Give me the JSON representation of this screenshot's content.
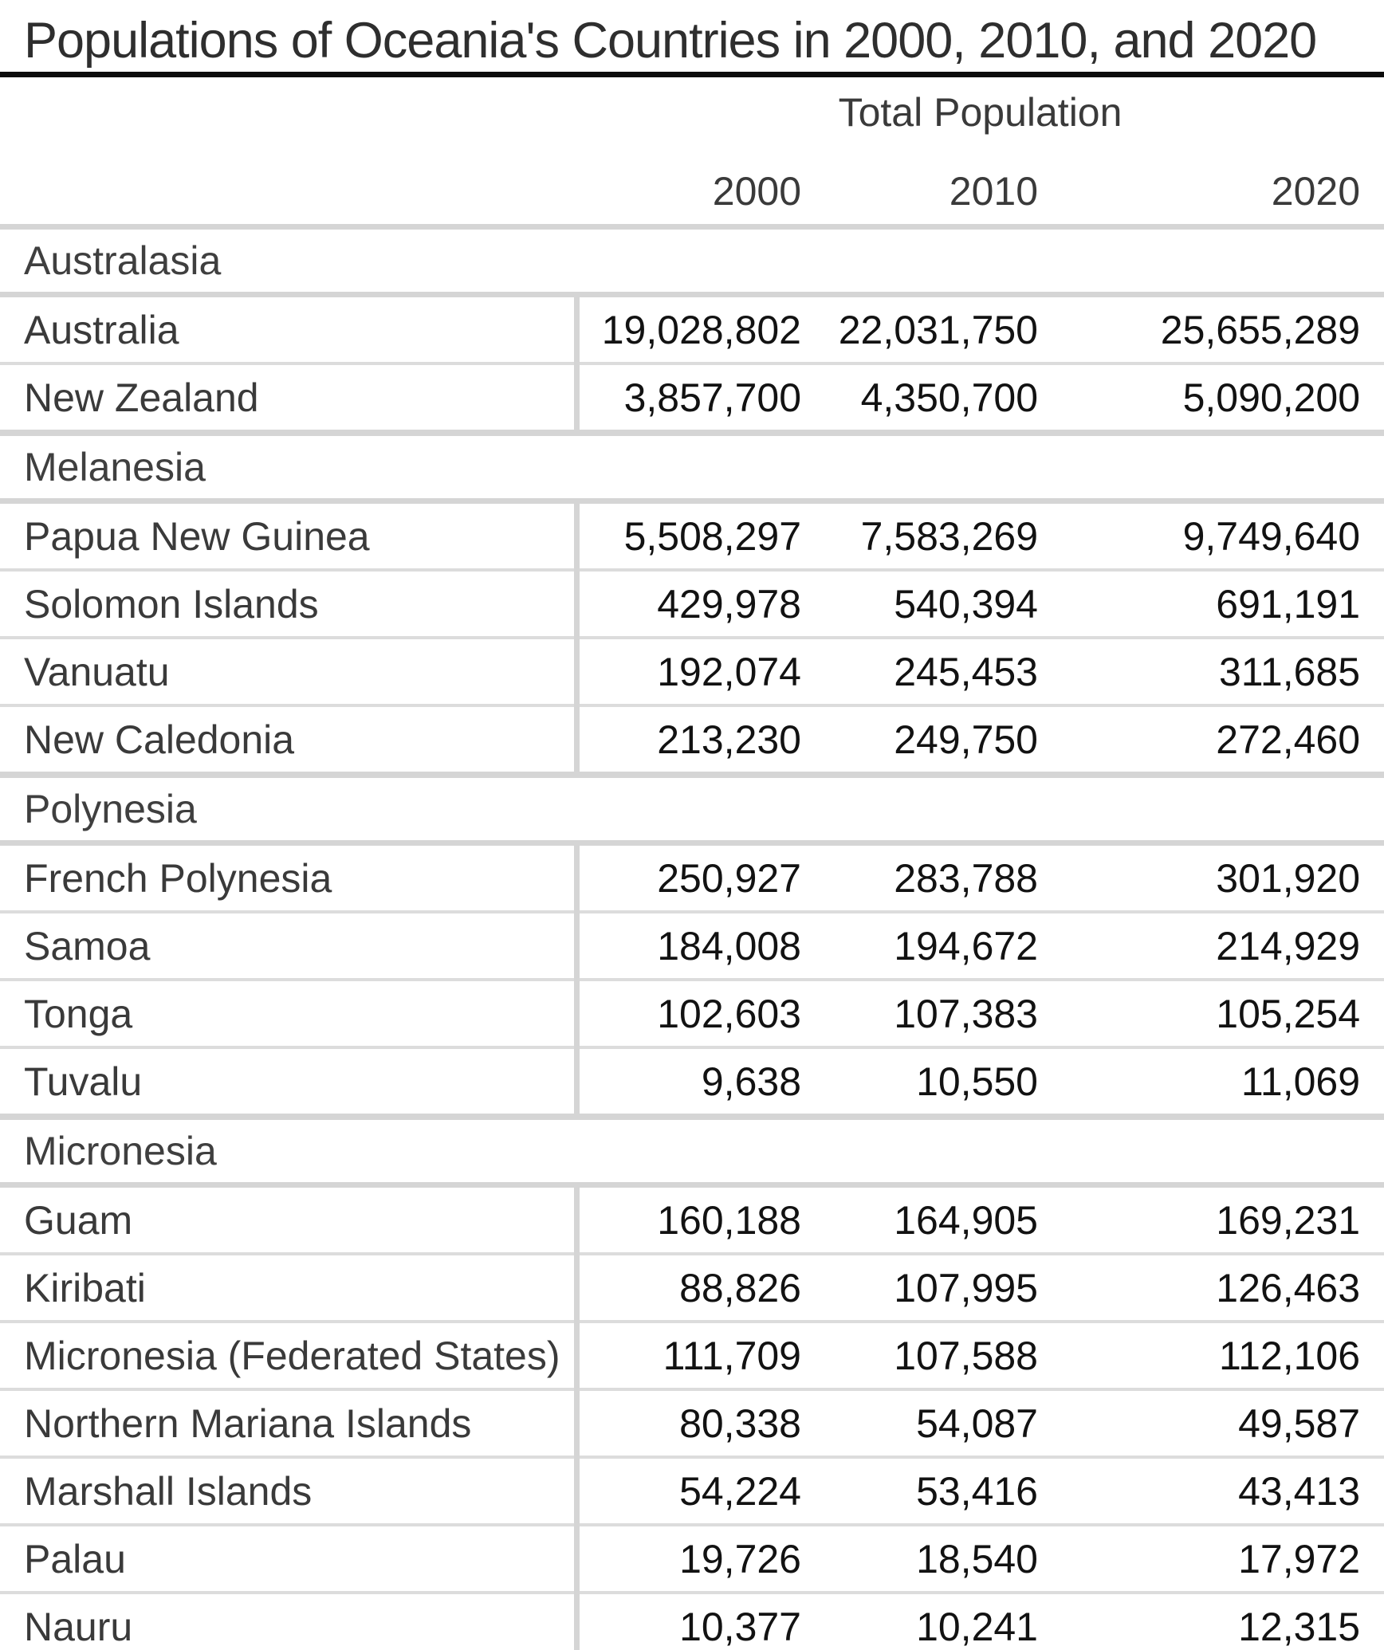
{
  "chart_data": {
    "type": "table",
    "title": "Populations of Oceania's Countries in 2000, 2010, and 2020",
    "group_header": "Total Population",
    "year_columns": [
      "2000",
      "2010",
      "2020"
    ],
    "sections": [
      {
        "name": "Australasia",
        "rows": [
          {
            "country": "Australia",
            "values": [
              "19,028,802",
              "22,031,750",
              "25,655,289"
            ]
          },
          {
            "country": "New Zealand",
            "values": [
              "3,857,700",
              "4,350,700",
              "5,090,200"
            ]
          }
        ]
      },
      {
        "name": "Melanesia",
        "rows": [
          {
            "country": "Papua New Guinea",
            "values": [
              "5,508,297",
              "7,583,269",
              "9,749,640"
            ]
          },
          {
            "country": "Solomon Islands",
            "values": [
              "429,978",
              "540,394",
              "691,191"
            ]
          },
          {
            "country": "Vanuatu",
            "values": [
              "192,074",
              "245,453",
              "311,685"
            ]
          },
          {
            "country": "New Caledonia",
            "values": [
              "213,230",
              "249,750",
              "272,460"
            ]
          }
        ]
      },
      {
        "name": "Polynesia",
        "rows": [
          {
            "country": "French Polynesia",
            "values": [
              "250,927",
              "283,788",
              "301,920"
            ]
          },
          {
            "country": "Samoa",
            "values": [
              "184,008",
              "194,672",
              "214,929"
            ]
          },
          {
            "country": "Tonga",
            "values": [
              "102,603",
              "107,383",
              "105,254"
            ]
          },
          {
            "country": "Tuvalu",
            "values": [
              "9,638",
              "10,550",
              "11,069"
            ]
          }
        ]
      },
      {
        "name": "Micronesia",
        "rows": [
          {
            "country": "Guam",
            "values": [
              "160,188",
              "164,905",
              "169,231"
            ]
          },
          {
            "country": "Kiribati",
            "values": [
              "88,826",
              "107,995",
              "126,463"
            ]
          },
          {
            "country": "Micronesia (Federated States)",
            "values": [
              "111,709",
              "107,588",
              "112,106"
            ]
          },
          {
            "country": "Northern Mariana Islands",
            "values": [
              "80,338",
              "54,087",
              "49,587"
            ]
          },
          {
            "country": "Marshall Islands",
            "values": [
              "54,224",
              "53,416",
              "43,413"
            ]
          },
          {
            "country": "Palau",
            "values": [
              "19,726",
              "18,540",
              "17,972"
            ]
          },
          {
            "country": "Nauru",
            "values": [
              "10,377",
              "10,241",
              "12,315"
            ]
          }
        ]
      }
    ],
    "layout": {
      "grid": "horizontal rules between rows; thick bands between sections; vertical divider after name column",
      "value_alignment": "right"
    }
  },
  "colors": {
    "background": "#ffffff",
    "title_text": "#2e2e2e",
    "title_rule": "#0c0c0c",
    "header_text": "#3a3a3a",
    "section_text": "#3f3f3f",
    "country_text": "#3a3a3a",
    "number_text": "#121212",
    "section_band_gray": "#d5d5d5",
    "row_line_gray": "#dcdcdc"
  }
}
